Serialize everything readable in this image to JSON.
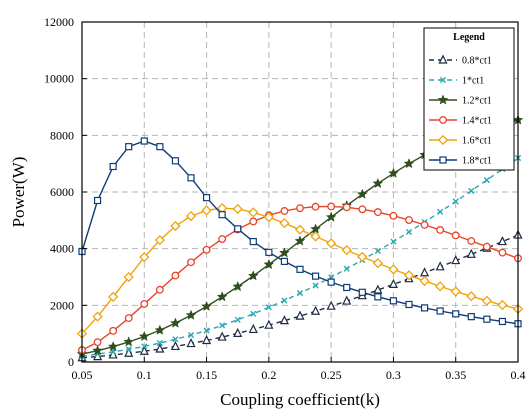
{
  "chart_data": {
    "type": "line",
    "title": "",
    "xlabel": "Coupling coefficient(k)",
    "ylabel": "Power(W)",
    "xlim": [
      0.05,
      0.4
    ],
    "ylim": [
      0,
      12000
    ],
    "xticks": [
      "0.05",
      "0.1",
      "0.15",
      "0.2",
      "0.25",
      "0.3",
      "0.35",
      "0.4"
    ],
    "yticks": [
      "0",
      "2000",
      "4000",
      "6000",
      "8000",
      "10000",
      "12000"
    ],
    "grid": true,
    "legend": {
      "title": "Legend",
      "placement": "top-right"
    },
    "series": [
      {
        "name": "0.8*ct1",
        "color": "#1f2a44",
        "marker": "triangle-open",
        "line": "dashed",
        "x": [
          0.05,
          0.0625,
          0.075,
          0.0875,
          0.1,
          0.1125,
          0.125,
          0.1375,
          0.15,
          0.1625,
          0.175,
          0.1875,
          0.2,
          0.2125,
          0.225,
          0.2375,
          0.25,
          0.2625,
          0.275,
          0.2875,
          0.3,
          0.3125,
          0.325,
          0.3375,
          0.35,
          0.3625,
          0.375,
          0.3875,
          0.4
        ],
        "values": [
          150,
          190,
          250,
          310,
          380,
          460,
          550,
          650,
          760,
          880,
          1010,
          1150,
          1300,
          1460,
          1620,
          1790,
          1970,
          2150,
          2340,
          2540,
          2740,
          2940,
          3150,
          3360,
          3580,
          3800,
          4020,
          4250,
          4480
        ]
      },
      {
        "name": "1*ct1",
        "color": "#2aa7b4",
        "marker": "x",
        "line": "dashed",
        "x": [
          0.05,
          0.0625,
          0.075,
          0.0875,
          0.1,
          0.1125,
          0.125,
          0.1375,
          0.15,
          0.1625,
          0.175,
          0.1875,
          0.2,
          0.2125,
          0.225,
          0.2375,
          0.25,
          0.2625,
          0.275,
          0.2875,
          0.3,
          0.3125,
          0.325,
          0.3375,
          0.35,
          0.3625,
          0.375,
          0.3875,
          0.4
        ],
        "values": [
          200,
          280,
          360,
          450,
          550,
          670,
          800,
          950,
          1110,
          1290,
          1490,
          1700,
          1930,
          2170,
          2430,
          2700,
          2990,
          3290,
          3600,
          3920,
          4250,
          4590,
          4940,
          5300,
          5670,
          6040,
          6420,
          6810,
          7200
        ]
      },
      {
        "name": "1.2*ct1",
        "color": "#2f4f1f",
        "marker": "star",
        "line": "solid",
        "x": [
          0.05,
          0.0625,
          0.075,
          0.0875,
          0.1,
          0.1125,
          0.125,
          0.1375,
          0.15,
          0.1625,
          0.175,
          0.1875,
          0.2,
          0.2125,
          0.225,
          0.2375,
          0.25,
          0.2625,
          0.275,
          0.2875,
          0.3,
          0.3125,
          0.325,
          0.3375,
          0.35,
          0.3625,
          0.375,
          0.3875,
          0.4
        ],
        "values": [
          280,
          400,
          540,
          710,
          900,
          1120,
          1370,
          1650,
          1960,
          2300,
          2660,
          3040,
          3440,
          3850,
          4270,
          4690,
          5110,
          5520,
          5920,
          6300,
          6660,
          7000,
          7310,
          7590,
          7840,
          8060,
          8250,
          8410,
          8540
        ]
      },
      {
        "name": "1.4*ct1",
        "color": "#e8452a",
        "marker": "circle-open",
        "line": "solid",
        "x": [
          0.05,
          0.0625,
          0.075,
          0.0875,
          0.1,
          0.1125,
          0.125,
          0.1375,
          0.15,
          0.1625,
          0.175,
          0.1875,
          0.2,
          0.2125,
          0.225,
          0.2375,
          0.25,
          0.2625,
          0.275,
          0.2875,
          0.3,
          0.3125,
          0.325,
          0.3375,
          0.35,
          0.3625,
          0.375,
          0.3875,
          0.4
        ],
        "values": [
          420,
          700,
          1100,
          1550,
          2050,
          2550,
          3050,
          3520,
          3960,
          4340,
          4680,
          4960,
          5180,
          5330,
          5430,
          5480,
          5490,
          5460,
          5390,
          5290,
          5160,
          5010,
          4840,
          4660,
          4470,
          4270,
          4070,
          3860,
          3660
        ]
      },
      {
        "name": "1.6*ct1",
        "color": "#f0a30a",
        "marker": "diamond-open",
        "line": "solid",
        "x": [
          0.05,
          0.0625,
          0.075,
          0.0875,
          0.1,
          0.1125,
          0.125,
          0.1375,
          0.15,
          0.1625,
          0.175,
          0.1875,
          0.2,
          0.2125,
          0.225,
          0.2375,
          0.25,
          0.2625,
          0.275,
          0.2875,
          0.3,
          0.3125,
          0.325,
          0.3375,
          0.35,
          0.3625,
          0.375,
          0.3875,
          0.4
        ],
        "values": [
          1000,
          1600,
          2300,
          3000,
          3700,
          4300,
          4800,
          5150,
          5350,
          5430,
          5400,
          5280,
          5110,
          4900,
          4670,
          4430,
          4190,
          3950,
          3710,
          3490,
          3270,
          3060,
          2860,
          2670,
          2490,
          2320,
          2160,
          2010,
          1870
        ]
      },
      {
        "name": "1.8*ct1",
        "color": "#0f3c78",
        "marker": "square-open",
        "line": "solid",
        "x": [
          0.05,
          0.0625,
          0.075,
          0.0875,
          0.1,
          0.1125,
          0.125,
          0.1375,
          0.15,
          0.1625,
          0.175,
          0.1875,
          0.2,
          0.2125,
          0.225,
          0.2375,
          0.25,
          0.2625,
          0.275,
          0.2875,
          0.3,
          0.3125,
          0.325,
          0.3375,
          0.35,
          0.3625,
          0.375,
          0.3875,
          0.4
        ],
        "values": [
          3900,
          5700,
          6900,
          7600,
          7800,
          7600,
          7100,
          6500,
          5800,
          5200,
          4700,
          4250,
          3870,
          3550,
          3270,
          3030,
          2820,
          2630,
          2460,
          2300,
          2160,
          2030,
          1910,
          1800,
          1700,
          1600,
          1510,
          1430,
          1350
        ]
      }
    ]
  }
}
